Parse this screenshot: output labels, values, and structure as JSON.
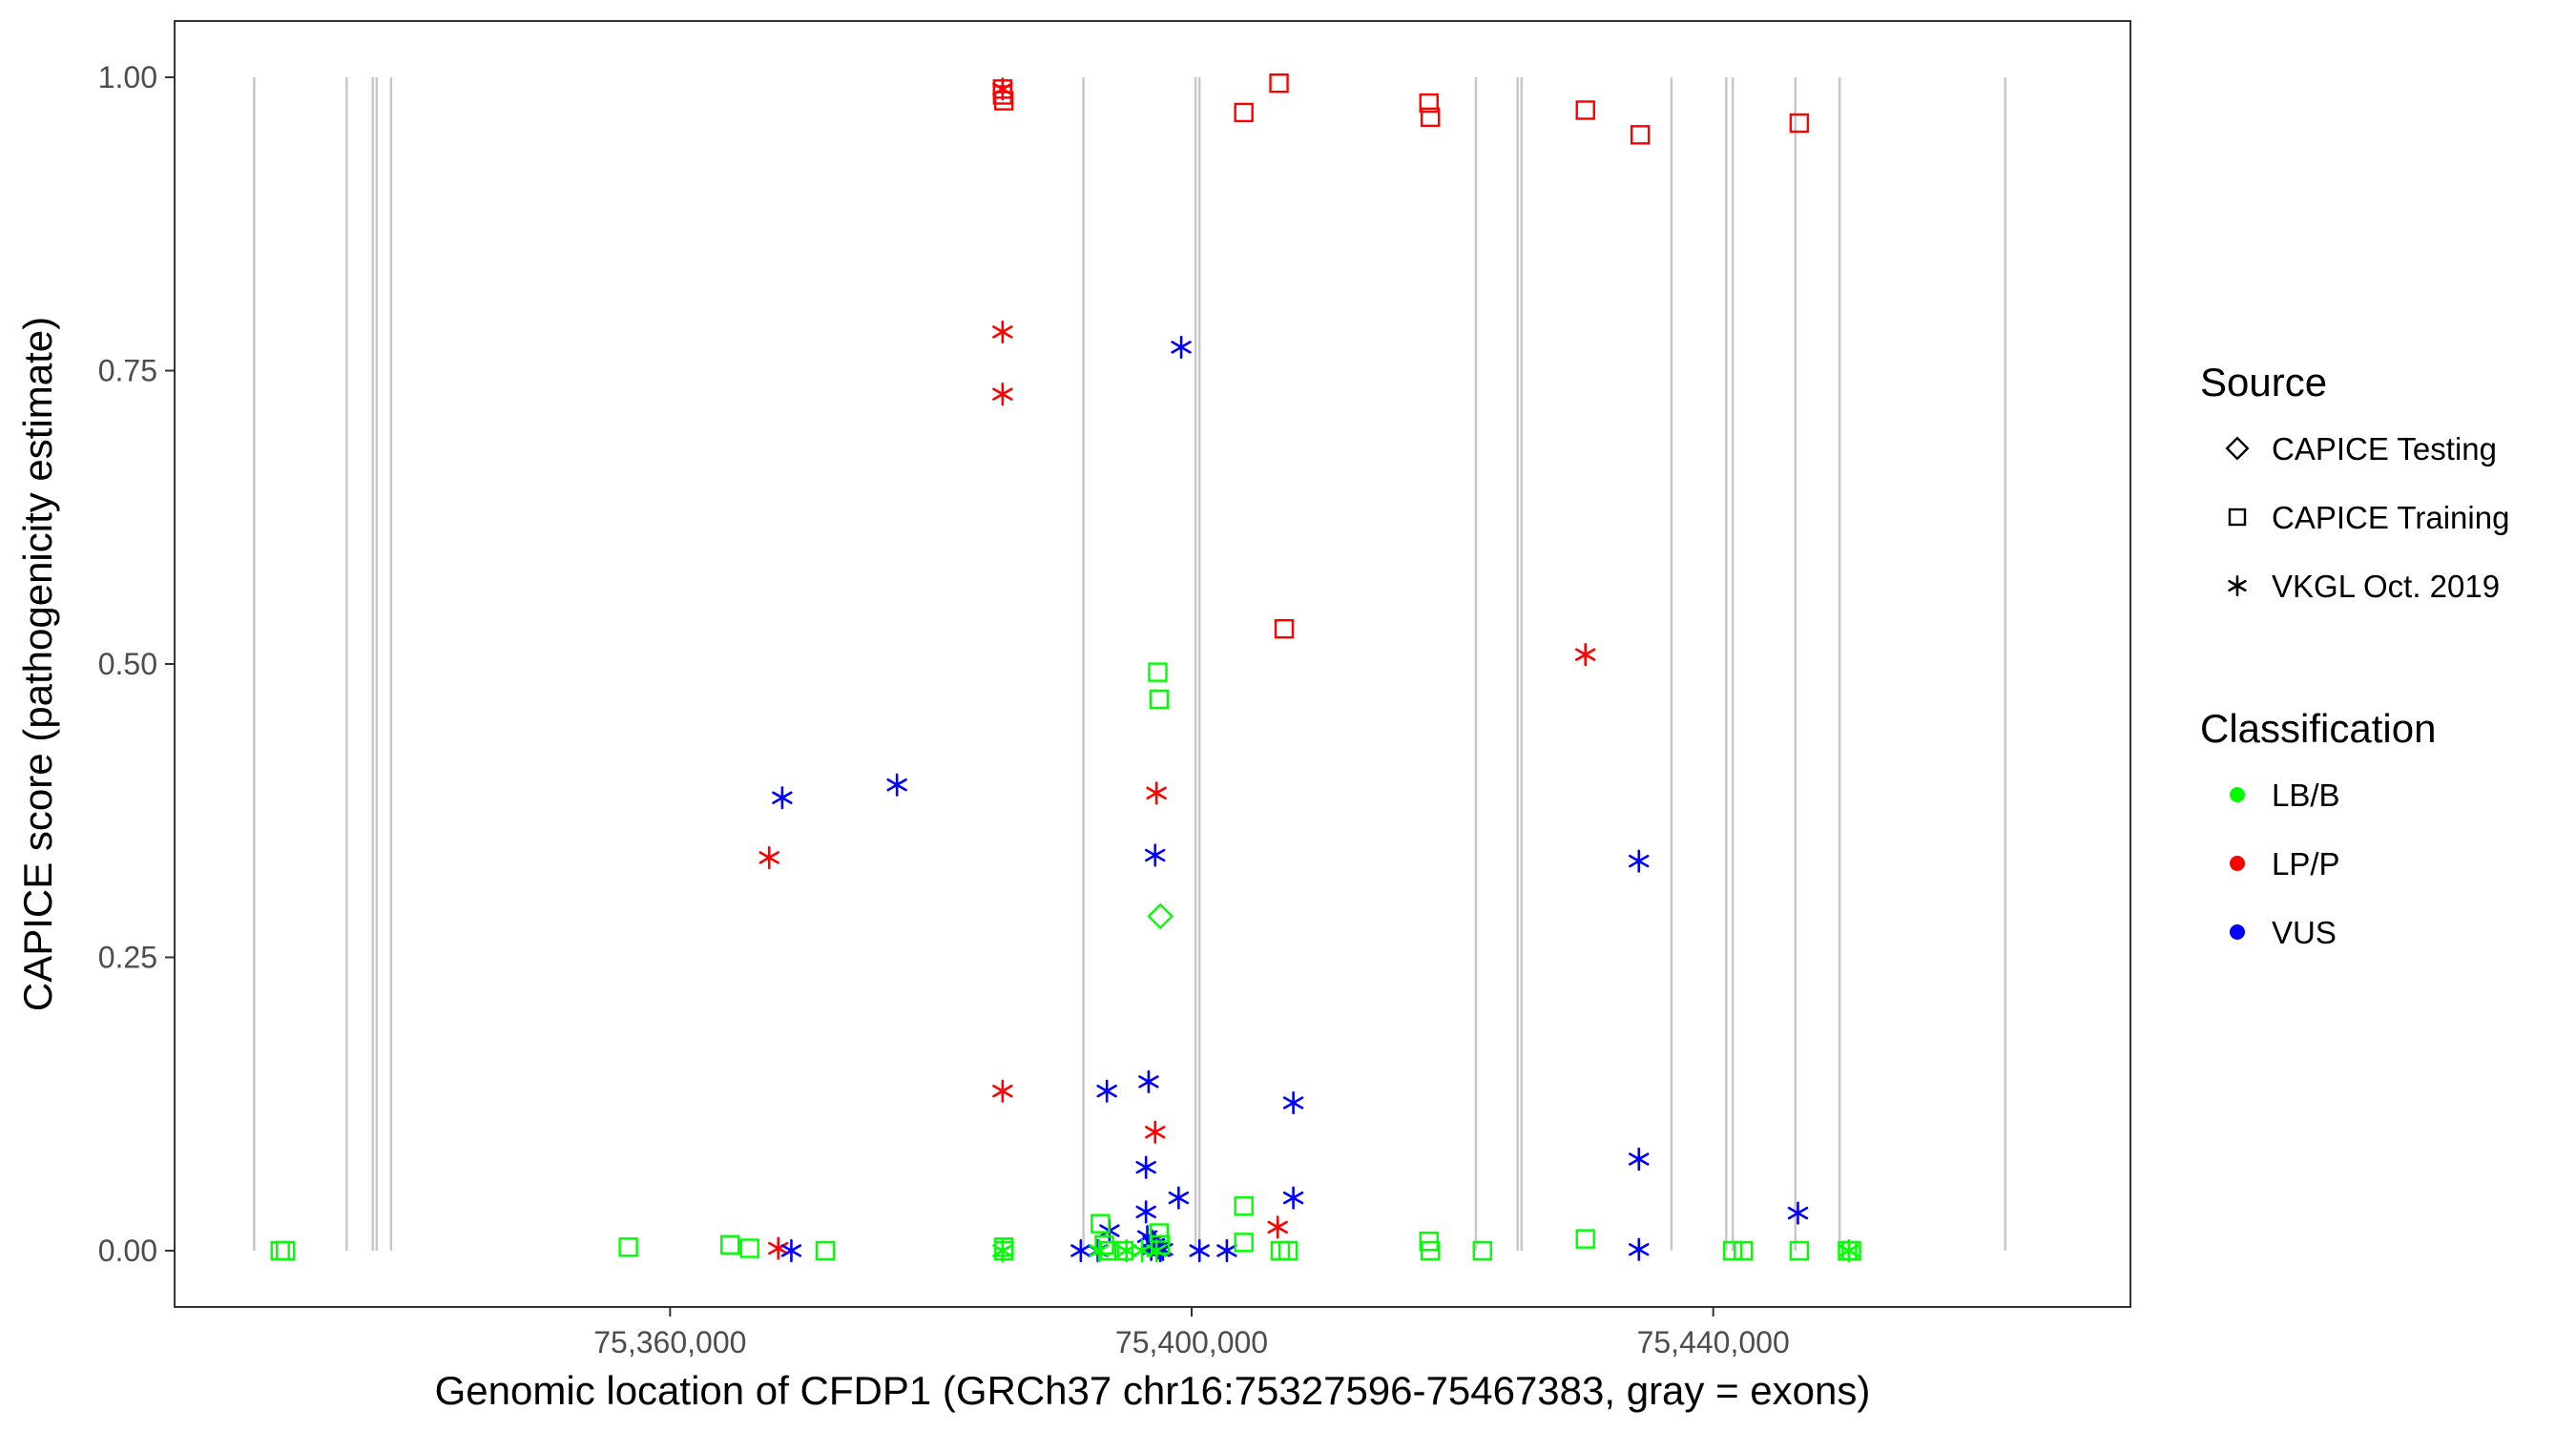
{
  "chart_data": {
    "type": "scatter",
    "xlabel": "Genomic location of CFDP1 (GRCh37 chr16:75327596-75467383, gray = exons)",
    "ylabel": "CAPICE score (pathogenicity estimate)",
    "xlim": [
      75322000,
      75472000
    ],
    "ylim": [
      -0.048,
      1.048
    ],
    "x_ticks": [
      75360000,
      75400000,
      75440000
    ],
    "x_tick_labels": [
      "75,360,000",
      "75,400,000",
      "75,440,000"
    ],
    "y_ticks": [
      0,
      0.25,
      0.5,
      0.75,
      1.0
    ],
    "y_tick_labels": [
      "0.00",
      "0.25",
      "0.50",
      "0.75",
      "1.00"
    ],
    "grid": false,
    "exon_color": "#c8c8c8",
    "exons": [
      75328100,
      75335200,
      75337200,
      75337500,
      75338600,
      75391700,
      75400300,
      75400600,
      75421800,
      75425000,
      75425300,
      75436800,
      75441000,
      75441500,
      75446300,
      75449700,
      75462400
    ],
    "legends": {
      "source": {
        "title": "Source",
        "entries": [
          {
            "label": "CAPICE Testing",
            "shape": "diamond"
          },
          {
            "label": "CAPICE Training",
            "shape": "square"
          },
          {
            "label": "VKGL Oct. 2019",
            "shape": "asterisk"
          }
        ]
      },
      "classification": {
        "title": "Classification",
        "entries": [
          {
            "label": "LB/B",
            "color": "#00ff00"
          },
          {
            "label": "LP/P",
            "color": "#ff0000"
          },
          {
            "label": "VUS",
            "color": "#0000ff"
          }
        ]
      }
    },
    "legend_position": "right",
    "colors": {
      "LB/B": "#00ff00",
      "LP/P": "#ff0000",
      "VUS": "#0000ff"
    },
    "series": [
      {
        "source": "CAPICE Training",
        "classification": "LP/P",
        "shape": "square",
        "points": [
          [
            75385500,
            0.99
          ],
          [
            75385500,
            0.985
          ],
          [
            75385600,
            0.98
          ],
          [
            75404000,
            0.97
          ],
          [
            75406700,
            0.995
          ],
          [
            75407100,
            0.53
          ],
          [
            75418200,
            0.978
          ],
          [
            75418300,
            0.966
          ],
          [
            75430200,
            0.972
          ],
          [
            75434400,
            0.951
          ],
          [
            75446600,
            0.961
          ]
        ]
      },
      {
        "source": "VKGL Oct. 2019",
        "classification": "LP/P",
        "shape": "asterisk",
        "points": [
          [
            75385500,
            0.99
          ],
          [
            75385500,
            0.783
          ],
          [
            75385500,
            0.73
          ],
          [
            75367600,
            0.335
          ],
          [
            75385500,
            0.136
          ],
          [
            75397300,
            0.39
          ],
          [
            75397200,
            0.101
          ],
          [
            75406600,
            0.02
          ],
          [
            75368300,
            0.002
          ],
          [
            75430200,
            0.508
          ]
        ]
      },
      {
        "source": "VKGL Oct. 2019",
        "classification": "VUS",
        "shape": "asterisk",
        "points": [
          [
            75368600,
            0.386
          ],
          [
            75377400,
            0.397
          ],
          [
            75399200,
            0.77
          ],
          [
            75397200,
            0.337
          ],
          [
            75393500,
            0.136
          ],
          [
            75396700,
            0.144
          ],
          [
            75407800,
            0.126
          ],
          [
            75396500,
            0.071
          ],
          [
            75399000,
            0.045
          ],
          [
            75407800,
            0.045
          ],
          [
            75396500,
            0.033
          ],
          [
            75393700,
            0.017
          ],
          [
            75396600,
            0.012
          ],
          [
            75397000,
            0.008
          ],
          [
            75397200,
            0.005
          ],
          [
            75397400,
            0.002
          ],
          [
            75396900,
            0.001
          ],
          [
            75397800,
            0.001
          ],
          [
            75369300,
            0.0
          ],
          [
            75391500,
            0.0
          ],
          [
            75392800,
            0.0
          ],
          [
            75397600,
            0.0
          ],
          [
            75400600,
            0.0
          ],
          [
            75402700,
            0.0
          ],
          [
            75434300,
            0.332
          ],
          [
            75434300,
            0.078
          ],
          [
            75434300,
            0.001
          ],
          [
            75446500,
            0.032
          ]
        ]
      },
      {
        "source": "CAPICE Training",
        "classification": "LB/B",
        "shape": "square",
        "points": [
          [
            75330100,
            0.0
          ],
          [
            75330500,
            0.0
          ],
          [
            75356800,
            0.003
          ],
          [
            75364600,
            0.005
          ],
          [
            75366100,
            0.002
          ],
          [
            75371900,
            0.0
          ],
          [
            75385600,
            0.003
          ],
          [
            75385600,
            0.0
          ],
          [
            75393000,
            0.023
          ],
          [
            75393300,
            0.005
          ],
          [
            75393700,
            0.0
          ],
          [
            75394800,
            0.0
          ],
          [
            75397400,
            0.493
          ],
          [
            75397500,
            0.47
          ],
          [
            75397500,
            0.015
          ],
          [
            75397600,
            0.005
          ],
          [
            75404000,
            0.038
          ],
          [
            75404000,
            0.007
          ],
          [
            75406800,
            0.0
          ],
          [
            75407400,
            0.0
          ],
          [
            75418200,
            0.008
          ],
          [
            75418300,
            0.0
          ],
          [
            75422300,
            0.0
          ],
          [
            75430200,
            0.01
          ],
          [
            75441500,
            0.0
          ],
          [
            75442300,
            0.0
          ],
          [
            75446600,
            0.0
          ],
          [
            75450300,
            0.0
          ],
          [
            75450600,
            0.0
          ]
        ]
      },
      {
        "source": "VKGL Oct. 2019",
        "classification": "LB/B",
        "shape": "asterisk",
        "points": [
          [
            75385500,
            0.0
          ],
          [
            75392900,
            0.0
          ],
          [
            75395000,
            0.0
          ],
          [
            75396200,
            0.0
          ],
          [
            75397300,
            0.0
          ],
          [
            75450400,
            0.0
          ]
        ]
      },
      {
        "source": "CAPICE Testing",
        "classification": "LB/B",
        "shape": "diamond",
        "points": [
          [
            75397600,
            0.285
          ]
        ]
      }
    ]
  }
}
